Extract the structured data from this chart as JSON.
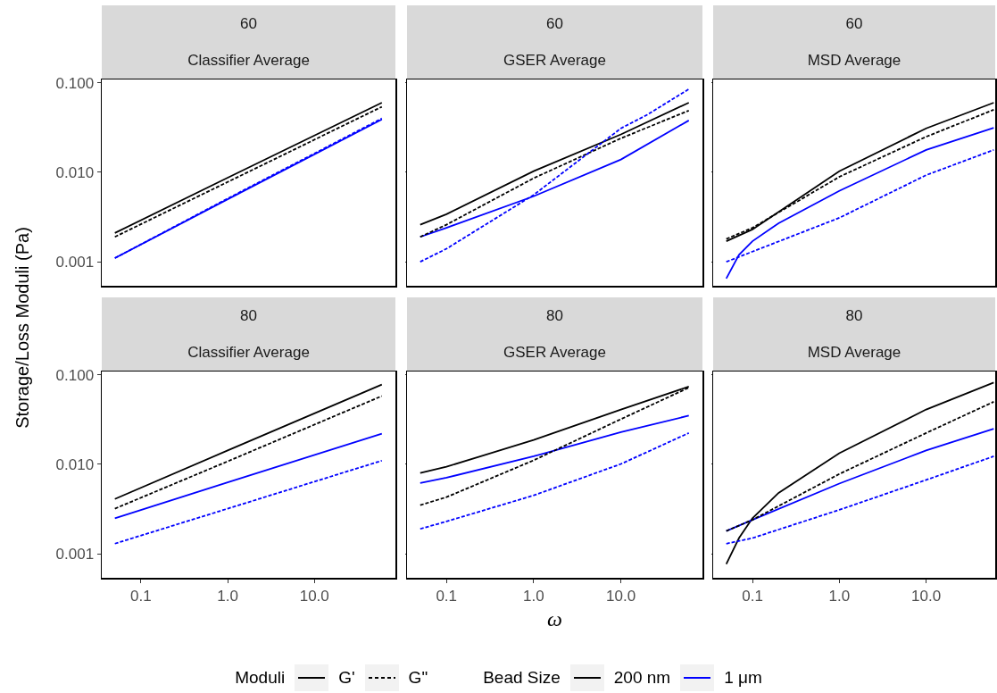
{
  "chart_data": [
    {
      "type": "line",
      "title": "60",
      "subtitle": "Classifier Average",
      "ylabel": "Storage/Loss Moduli (Pa)",
      "log": "xy",
      "tick_labels": "y",
      "xlim": [
        0.0353,
        86
      ],
      "ylim": [
        0.00054,
        0.109
      ],
      "xticks": [
        {
          "value": 0.1,
          "label": null
        },
        {
          "value": 1,
          "label": null
        },
        {
          "value": 10,
          "label": null
        }
      ],
      "yticks": [
        {
          "value": 0.001,
          "label": "0.001"
        },
        {
          "value": 0.01,
          "label": "0.010"
        },
        {
          "value": 0.1,
          "label": "0.100"
        }
      ],
      "series": [
        {
          "color": "#000000",
          "line_style": "solid",
          "x": [
            0.05,
            1,
            60
          ],
          "values": [
            0.0021,
            0.0087,
            0.06
          ]
        },
        {
          "color": "#000000",
          "line_style": "dashed",
          "x": [
            0.05,
            1,
            60
          ],
          "values": [
            0.0019,
            0.0078,
            0.054
          ]
        },
        {
          "color": "#0000ff",
          "line_style": "solid",
          "x": [
            0.05,
            1,
            60
          ],
          "values": [
            0.0011,
            0.005,
            0.039
          ]
        },
        {
          "color": "#0000ff",
          "line_style": "dashed",
          "x": [
            0.05,
            1,
            60
          ],
          "values": [
            0.0011,
            0.0051,
            0.04
          ]
        }
      ]
    },
    {
      "type": "line",
      "title": "60",
      "subtitle": "GSER Average",
      "log": "xy",
      "tick_labels": false,
      "xlim": [
        0.0353,
        86
      ],
      "ylim": [
        0.00054,
        0.109
      ],
      "xticks": [
        {
          "value": 0.1,
          "label": null
        },
        {
          "value": 1,
          "label": null
        },
        {
          "value": 10,
          "label": null
        }
      ],
      "yticks": [
        {
          "value": 0.001,
          "label": null
        },
        {
          "value": 0.01,
          "label": null
        },
        {
          "value": 0.1,
          "label": null
        }
      ],
      "series": [
        {
          "color": "#000000",
          "line_style": "solid",
          "x": [
            0.05,
            0.1,
            1,
            10,
            60
          ],
          "values": [
            0.0026,
            0.0034,
            0.0103,
            0.0265,
            0.06
          ]
        },
        {
          "color": "#000000",
          "line_style": "dashed",
          "x": [
            0.05,
            0.1,
            1,
            10,
            60
          ],
          "values": [
            0.0019,
            0.0026,
            0.0086,
            0.024,
            0.049
          ]
        },
        {
          "color": "#0000ff",
          "line_style": "solid",
          "x": [
            0.05,
            0.1,
            1,
            10,
            60
          ],
          "values": [
            0.0019,
            0.0024,
            0.0054,
            0.0139,
            0.038
          ]
        },
        {
          "color": "#0000ff",
          "line_style": "dashed",
          "x": [
            0.05,
            0.1,
            1,
            10,
            20,
            60
          ],
          "values": [
            0.001,
            0.0014,
            0.0056,
            0.031,
            0.044,
            0.085
          ]
        }
      ]
    },
    {
      "type": "line",
      "title": "60",
      "subtitle": "MSD Average",
      "log": "xy",
      "tick_labels": false,
      "xlim": [
        0.0353,
        62.4
      ],
      "ylim": [
        0.00054,
        0.109
      ],
      "xticks": [
        {
          "value": 0.1,
          "label": null
        },
        {
          "value": 1,
          "label": null
        },
        {
          "value": 10,
          "label": null
        }
      ],
      "yticks": [
        {
          "value": 0.001,
          "label": null
        },
        {
          "value": 0.01,
          "label": null
        },
        {
          "value": 0.1,
          "label": null
        }
      ],
      "series": [
        {
          "color": "#000000",
          "line_style": "solid",
          "x": [
            0.05,
            0.1,
            1,
            10,
            60
          ],
          "values": [
            0.0017,
            0.0023,
            0.0103,
            0.031,
            0.06
          ]
        },
        {
          "color": "#000000",
          "line_style": "dashed",
          "x": [
            0.05,
            0.1,
            1,
            10,
            60
          ],
          "values": [
            0.0018,
            0.0024,
            0.0089,
            0.025,
            0.05
          ]
        },
        {
          "color": "#0000ff",
          "line_style": "solid",
          "x": [
            0.05,
            0.07,
            0.1,
            0.2,
            1,
            10,
            60
          ],
          "values": [
            0.00065,
            0.0012,
            0.0017,
            0.0027,
            0.0062,
            0.0178,
            0.0315
          ]
        },
        {
          "color": "#0000ff",
          "line_style": "dashed",
          "x": [
            0.05,
            0.1,
            1,
            10,
            60
          ],
          "values": [
            0.001,
            0.0013,
            0.0031,
            0.0093,
            0.0178
          ]
        }
      ]
    },
    {
      "type": "line",
      "title": "80",
      "subtitle": "Classifier Average",
      "log": "xy",
      "xlim": [
        0.0353,
        86
      ],
      "ylim": [
        0.00054,
        0.109
      ],
      "xticks": [
        {
          "value": 0.1,
          "label": "0.1"
        },
        {
          "value": 1,
          "label": "1.0"
        },
        {
          "value": 10,
          "label": "10.0"
        }
      ],
      "yticks": [
        {
          "value": 0.001,
          "label": "0.001"
        },
        {
          "value": 0.01,
          "label": "0.010"
        },
        {
          "value": 0.1,
          "label": "0.100"
        }
      ],
      "series": [
        {
          "color": "#000000",
          "line_style": "solid",
          "x": [
            0.05,
            1,
            60
          ],
          "values": [
            0.0041,
            0.0143,
            0.078
          ]
        },
        {
          "color": "#000000",
          "line_style": "dashed",
          "x": [
            0.05,
            1,
            60
          ],
          "values": [
            0.0032,
            0.0108,
            0.058
          ]
        },
        {
          "color": "#0000ff",
          "line_style": "solid",
          "x": [
            0.05,
            1,
            60
          ],
          "values": [
            0.0025,
            0.0063,
            0.022
          ]
        },
        {
          "color": "#0000ff",
          "line_style": "dashed",
          "x": [
            0.05,
            1,
            60
          ],
          "values": [
            0.0013,
            0.0032,
            0.011
          ]
        }
      ]
    },
    {
      "type": "line",
      "title": "80",
      "subtitle": "GSER Average",
      "xlabel": "ω",
      "log": "xy",
      "tick_labels": "x",
      "xlim": [
        0.0353,
        86
      ],
      "ylim": [
        0.00054,
        0.109
      ],
      "xticks": [
        {
          "value": 0.1,
          "label": "0.1"
        },
        {
          "value": 1,
          "label": "1.0"
        },
        {
          "value": 10,
          "label": "10.0"
        }
      ],
      "yticks": [
        {
          "value": 0.001,
          "label": null
        },
        {
          "value": 0.01,
          "label": null
        },
        {
          "value": 0.1,
          "label": null
        }
      ],
      "series": [
        {
          "color": "#000000",
          "line_style": "solid",
          "x": [
            0.05,
            0.1,
            1,
            10,
            60
          ],
          "values": [
            0.008,
            0.0094,
            0.0187,
            0.041,
            0.074
          ]
        },
        {
          "color": "#000000",
          "line_style": "dashed",
          "x": [
            0.05,
            0.1,
            1,
            10,
            60
          ],
          "values": [
            0.0035,
            0.0043,
            0.0111,
            0.032,
            0.072
          ]
        },
        {
          "color": "#0000ff",
          "line_style": "solid",
          "x": [
            0.05,
            0.1,
            1,
            10,
            60
          ],
          "values": [
            0.0062,
            0.0071,
            0.0123,
            0.0229,
            0.035
          ]
        },
        {
          "color": "#0000ff",
          "line_style": "dashed",
          "x": [
            0.05,
            0.1,
            1,
            10,
            60
          ],
          "values": [
            0.0019,
            0.0023,
            0.0045,
            0.0101,
            0.0224
          ]
        }
      ]
    },
    {
      "type": "line",
      "title": "80",
      "subtitle": "MSD Average",
      "log": "xy",
      "tick_labels": "x",
      "xlim": [
        0.0353,
        62.4
      ],
      "ylim": [
        0.00054,
        0.109
      ],
      "xticks": [
        {
          "value": 0.1,
          "label": "0.1"
        },
        {
          "value": 1,
          "label": "1.0"
        },
        {
          "value": 10,
          "label": "10.0"
        }
      ],
      "yticks": [
        {
          "value": 0.001,
          "label": null
        },
        {
          "value": 0.01,
          "label": null
        },
        {
          "value": 0.1,
          "label": null
        }
      ],
      "series": [
        {
          "color": "#000000",
          "line_style": "solid",
          "x": [
            0.05,
            0.07,
            0.1,
            0.2,
            1,
            10,
            60
          ],
          "values": [
            0.00077,
            0.0015,
            0.0025,
            0.0048,
            0.0133,
            0.041,
            0.082
          ]
        },
        {
          "color": "#000000",
          "line_style": "dashed",
          "x": [
            0.05,
            0.1,
            1,
            10,
            60
          ],
          "values": [
            0.0018,
            0.0024,
            0.0078,
            0.0224,
            0.05
          ]
        },
        {
          "color": "#0000ff",
          "line_style": "solid",
          "x": [
            0.05,
            0.1,
            1,
            10,
            60
          ],
          "values": [
            0.0018,
            0.0024,
            0.0061,
            0.0143,
            0.025
          ]
        },
        {
          "color": "#0000ff",
          "line_style": "dashed",
          "x": [
            0.05,
            0.1,
            1,
            10,
            60
          ],
          "values": [
            0.0013,
            0.0015,
            0.0031,
            0.0067,
            0.0123
          ]
        }
      ]
    },
    {
      "type": "other",
      "annotations": [
        "Moduli",
        "G'",
        "G\"",
        "Bead Size",
        "200 nm",
        "1 μm"
      ]
    }
  ]
}
